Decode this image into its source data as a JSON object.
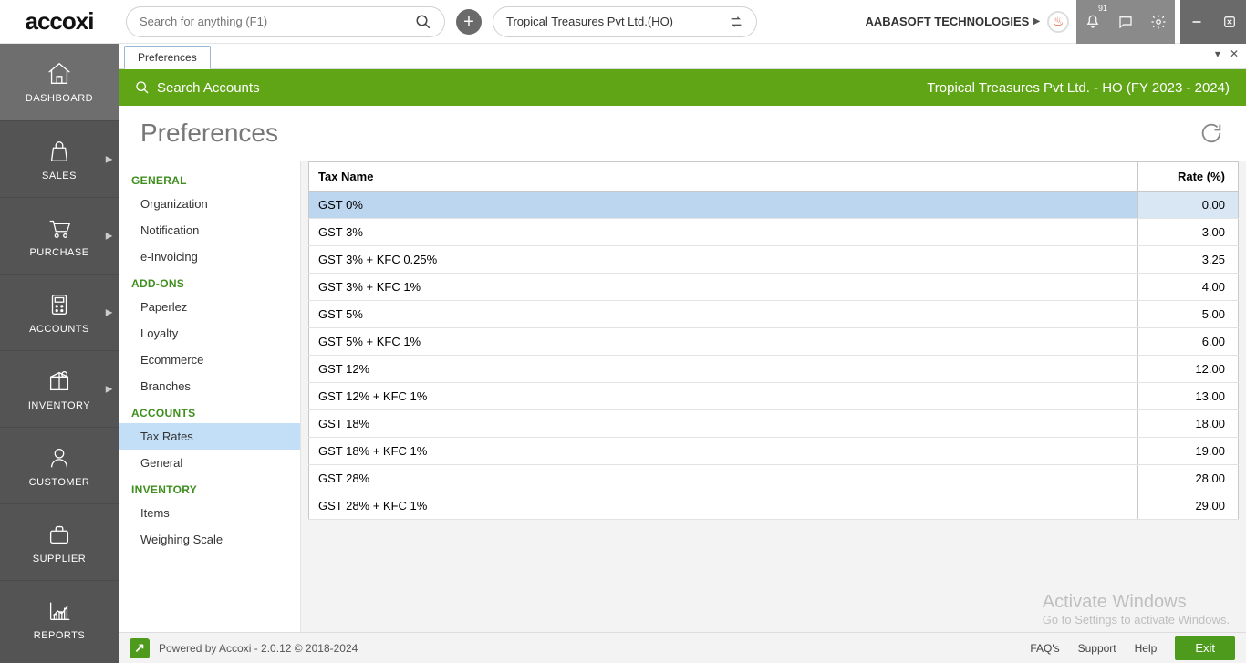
{
  "topbar": {
    "logo_text": "accoxi",
    "search_placeholder": "Search for anything (F1)",
    "company_name": "Tropical Treasures Pvt Ltd.(HO)",
    "user_name": "AABASOFT TECHNOLOGIES",
    "notification_count": "91"
  },
  "leftnav": [
    {
      "label": "DASHBOARD",
      "icon": "home",
      "has_sub": false
    },
    {
      "label": "SALES",
      "icon": "bag",
      "has_sub": true
    },
    {
      "label": "PURCHASE",
      "icon": "cart",
      "has_sub": true
    },
    {
      "label": "ACCOUNTS",
      "icon": "calc",
      "has_sub": true
    },
    {
      "label": "INVENTORY",
      "icon": "box",
      "has_sub": true
    },
    {
      "label": "CUSTOMER",
      "icon": "user",
      "has_sub": false
    },
    {
      "label": "SUPPLIER",
      "icon": "brief",
      "has_sub": false
    },
    {
      "label": "REPORTS",
      "icon": "chart",
      "has_sub": false
    }
  ],
  "tab_label": "Preferences",
  "greenbar": {
    "search_label": "Search Accounts",
    "context_label": "Tropical Treasures Pvt Ltd. - HO (FY 2023 - 2024)"
  },
  "page_title": "Preferences",
  "prefs_sidebar": [
    {
      "type": "header",
      "label": "GENERAL"
    },
    {
      "type": "item",
      "label": "Organization"
    },
    {
      "type": "item",
      "label": "Notification"
    },
    {
      "type": "item",
      "label": "e-Invoicing"
    },
    {
      "type": "header",
      "label": "ADD-ONS"
    },
    {
      "type": "item",
      "label": "Paperlez"
    },
    {
      "type": "item",
      "label": "Loyalty"
    },
    {
      "type": "item",
      "label": "Ecommerce"
    },
    {
      "type": "item",
      "label": "Branches"
    },
    {
      "type": "header",
      "label": "ACCOUNTS"
    },
    {
      "type": "item",
      "label": "Tax Rates",
      "active": true
    },
    {
      "type": "item",
      "label": "General"
    },
    {
      "type": "header",
      "label": "INVENTORY"
    },
    {
      "type": "item",
      "label": "Items"
    },
    {
      "type": "item",
      "label": "Weighing Scale"
    }
  ],
  "tax_table": {
    "columns": [
      "Tax Name",
      "Rate (%)"
    ],
    "rows": [
      {
        "name": "GST 0%",
        "rate": "0.00",
        "selected": true
      },
      {
        "name": "GST 3%",
        "rate": "3.00"
      },
      {
        "name": "GST 3% + KFC 0.25%",
        "rate": "3.25"
      },
      {
        "name": "GST 3% + KFC 1%",
        "rate": "4.00"
      },
      {
        "name": "GST 5%",
        "rate": "5.00"
      },
      {
        "name": "GST 5% + KFC 1%",
        "rate": "6.00"
      },
      {
        "name": "GST 12%",
        "rate": "12.00"
      },
      {
        "name": "GST 12% + KFC 1%",
        "rate": "13.00"
      },
      {
        "name": "GST 18%",
        "rate": "18.00"
      },
      {
        "name": "GST 18% + KFC 1%",
        "rate": "19.00"
      },
      {
        "name": "GST 28%",
        "rate": "28.00"
      },
      {
        "name": "GST 28% + KFC 1%",
        "rate": "29.00"
      }
    ]
  },
  "footer": {
    "powered": "Powered by Accoxi - 2.0.12 © 2018-2024",
    "links": [
      "FAQ's",
      "Support",
      "Help"
    ],
    "exit": "Exit"
  },
  "watermark": {
    "line1": "Activate Windows",
    "line2": "Go to Settings to activate Windows."
  },
  "colors": {
    "green": "#5fa516",
    "nav_bg": "#545454",
    "row_selected": "#bcd6ef",
    "side_active": "#c3def7"
  }
}
